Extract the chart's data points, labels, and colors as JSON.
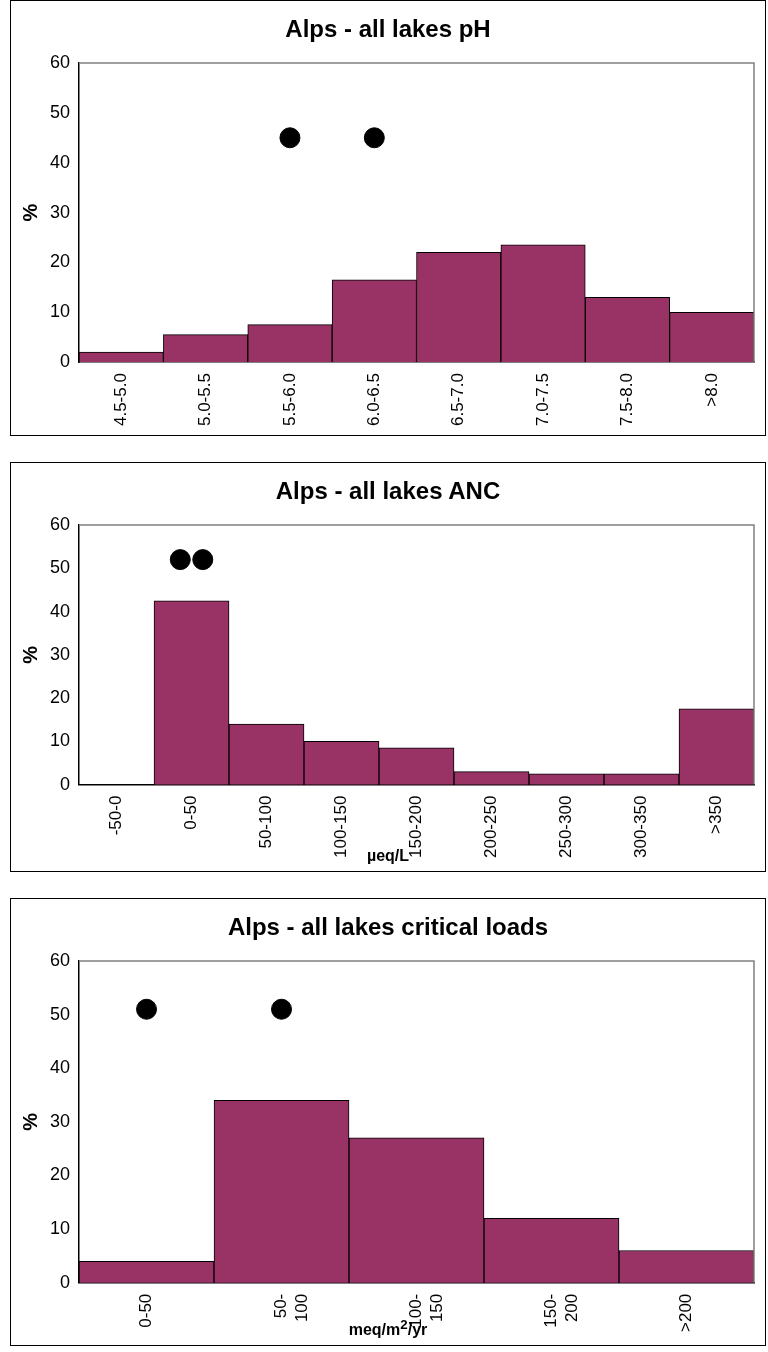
{
  "chart_data": [
    {
      "type": "bar",
      "title": "Alps - all lakes pH",
      "ylabel": "%",
      "categories": [
        "4.5-5.0",
        "5.0-5.5",
        "5.5-6.0",
        "6.0-6.5",
        "6.5-7.0",
        "7.0-7.5",
        "7.5-8.0",
        ">8.0"
      ],
      "ylim": [
        0,
        60
      ],
      "yticks": [
        0,
        10,
        20,
        30,
        40,
        50,
        60
      ],
      "grid": false,
      "legend": false,
      "marker": "circle",
      "series": [
        {
          "type": "bar",
          "color": "#993366",
          "values": [
            2,
            5.5,
            7.5,
            16.5,
            22,
            23.5,
            13,
            10
          ]
        },
        {
          "type": "scatter",
          "color": "#000000",
          "x": [
            "5.5-6.0",
            "6.0-6.5"
          ],
          "values": [
            45,
            45
          ]
        }
      ]
    },
    {
      "type": "bar",
      "title": "Alps - all lakes ANC",
      "ylabel": "%",
      "xlabel": "µeq/L",
      "categories": [
        "-50-0",
        "0-50",
        "50-100",
        "100-150",
        "150-200",
        "200-250",
        "250-300",
        "300-350",
        ">350"
      ],
      "ylim": [
        0,
        60
      ],
      "yticks": [
        0,
        10,
        20,
        30,
        40,
        50,
        60
      ],
      "grid": false,
      "legend": false,
      "marker": "circle",
      "series": [
        {
          "type": "bar",
          "color": "#993366",
          "values": [
            0,
            42.5,
            14,
            10,
            8.5,
            3,
            2.5,
            2.5,
            17.5
          ]
        },
        {
          "type": "scatter",
          "color": "#000000",
          "x": [
            "0-50",
            "0-50"
          ],
          "values": [
            52,
            52
          ]
        }
      ]
    },
    {
      "type": "bar",
      "title": "Alps - all lakes critical loads",
      "ylabel": "%",
      "xlabel": "meq/m$^{2}$/yr",
      "categories": [
        "0-50",
        "50- 100",
        "100- 150",
        "150- 200",
        ">200"
      ],
      "ylim": [
        0,
        60
      ],
      "yticks": [
        0,
        10,
        20,
        30,
        40,
        50,
        60
      ],
      "grid": false,
      "legend": false,
      "marker": "circle",
      "series": [
        {
          "type": "bar",
          "color": "#993366",
          "values": [
            4,
            34,
            27,
            12,
            6
          ]
        },
        {
          "type": "scatter",
          "color": "#000000",
          "x": [
            "0-50",
            "50- 100"
          ],
          "values": [
            51,
            51
          ]
        }
      ]
    }
  ]
}
